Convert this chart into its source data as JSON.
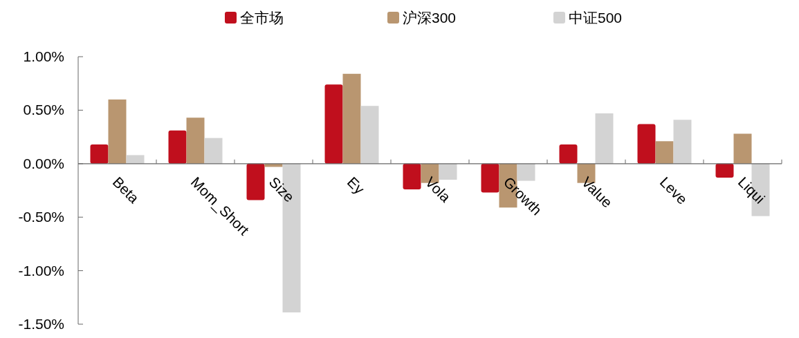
{
  "chart_data": {
    "type": "bar",
    "categories": [
      "Beta",
      "Mom_Short",
      "Size",
      "Ey",
      "Vola",
      "Growth",
      "Value",
      "Leve",
      "Liqui"
    ],
    "series": [
      {
        "name": "全市场",
        "color": "#c00f1d",
        "values": [
          0.18,
          0.31,
          -0.34,
          0.74,
          -0.24,
          -0.27,
          0.18,
          0.37,
          -0.13
        ]
      },
      {
        "name": "沪深300",
        "color": "#b99670",
        "values": [
          0.6,
          0.43,
          -0.03,
          0.84,
          -0.18,
          -0.41,
          -0.18,
          0.21,
          0.28
        ]
      },
      {
        "name": "中证500",
        "color": "#d3d3d3",
        "values": [
          0.08,
          0.24,
          -1.39,
          0.54,
          -0.15,
          -0.16,
          0.47,
          0.41,
          -0.49
        ]
      }
    ],
    "ylim": [
      -1.5,
      1
    ],
    "yticks": [
      {
        "value": 1,
        "label": "1.00%"
      },
      {
        "value": 0.5,
        "label": "0.50%"
      },
      {
        "value": 0,
        "label": "0.00%"
      },
      {
        "value": -0.5,
        "label": "-0.50%"
      },
      {
        "value": -1,
        "label": "-1.00%"
      },
      {
        "value": -1.5,
        "label": "-1.50%"
      }
    ],
    "legend": "top"
  }
}
